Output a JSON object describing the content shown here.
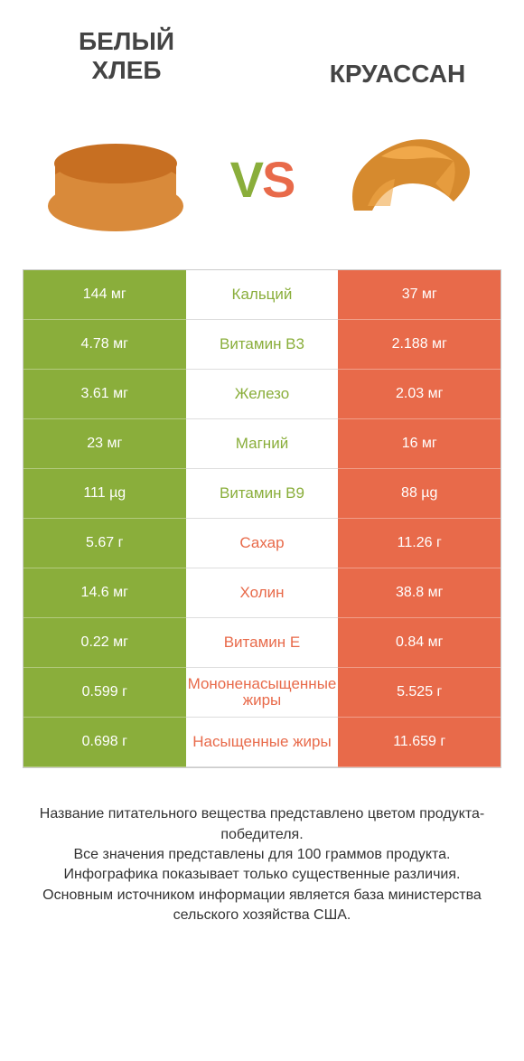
{
  "colors": {
    "green": "#8aae3b",
    "orange": "#e86a4a",
    "text": "#333333",
    "bg": "#ffffff"
  },
  "header": {
    "left_title_line1": "БЕЛЫЙ",
    "left_title_line2": "ХЛЕБ",
    "right_title": "КРУАССАН",
    "vs_v": "V",
    "vs_s": "S"
  },
  "rows": [
    {
      "left": "144 мг",
      "label": "Кальций",
      "right": "37 мг",
      "winner": "left"
    },
    {
      "left": "4.78 мг",
      "label": "Витамин B3",
      "right": "2.188 мг",
      "winner": "left"
    },
    {
      "left": "3.61 мг",
      "label": "Железо",
      "right": "2.03 мг",
      "winner": "left"
    },
    {
      "left": "23 мг",
      "label": "Магний",
      "right": "16 мг",
      "winner": "left"
    },
    {
      "left": "111 µg",
      "label": "Витамин B9",
      "right": "88 µg",
      "winner": "left"
    },
    {
      "left": "5.67 г",
      "label": "Сахар",
      "right": "11.26 г",
      "winner": "right"
    },
    {
      "left": "14.6 мг",
      "label": "Холин",
      "right": "38.8 мг",
      "winner": "right"
    },
    {
      "left": "0.22 мг",
      "label": "Витамин E",
      "right": "0.84 мг",
      "winner": "right"
    },
    {
      "left": "0.599 г",
      "label": "Мононенасыщенные жиры",
      "right": "5.525 г",
      "winner": "right"
    },
    {
      "left": "0.698 г",
      "label": "Насыщенные жиры",
      "right": "11.659 г",
      "winner": "right"
    }
  ],
  "footer": {
    "l1": "Название питательного вещества представлено цветом продукта-победителя.",
    "l2": "Все значения представлены для 100 граммов продукта.",
    "l3": "Инфографика показывает только существенные различия.",
    "l4": "Основным источником информации является база министерства сельского хозяйства США."
  }
}
